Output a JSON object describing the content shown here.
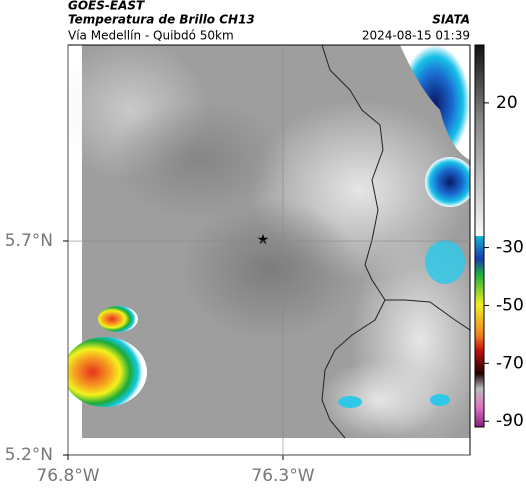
{
  "header": {
    "title": "GOES-EAST",
    "subtitle": "Temperatura de Brillo CH13",
    "source": "SIATA",
    "region": "Vía Medellín - Quibdó 50km",
    "timestamp": "2024-08-15 01:39"
  },
  "map": {
    "xlim": [
      -76.8,
      -75.865
    ],
    "ylim": [
      5.2,
      6.158
    ],
    "xticks": [
      {
        "value": -76.8,
        "label": "76.8°W"
      },
      {
        "value": -76.3,
        "label": "76.3°W"
      }
    ],
    "yticks": [
      {
        "value": 5.2,
        "label": "5.2°N"
      },
      {
        "value": 5.7,
        "label": "5.7°N"
      }
    ]
  },
  "colorbar": {
    "lim": [
      -92,
      40
    ],
    "ticks": [
      20,
      -30,
      -50,
      -70,
      -90
    ]
  }
}
